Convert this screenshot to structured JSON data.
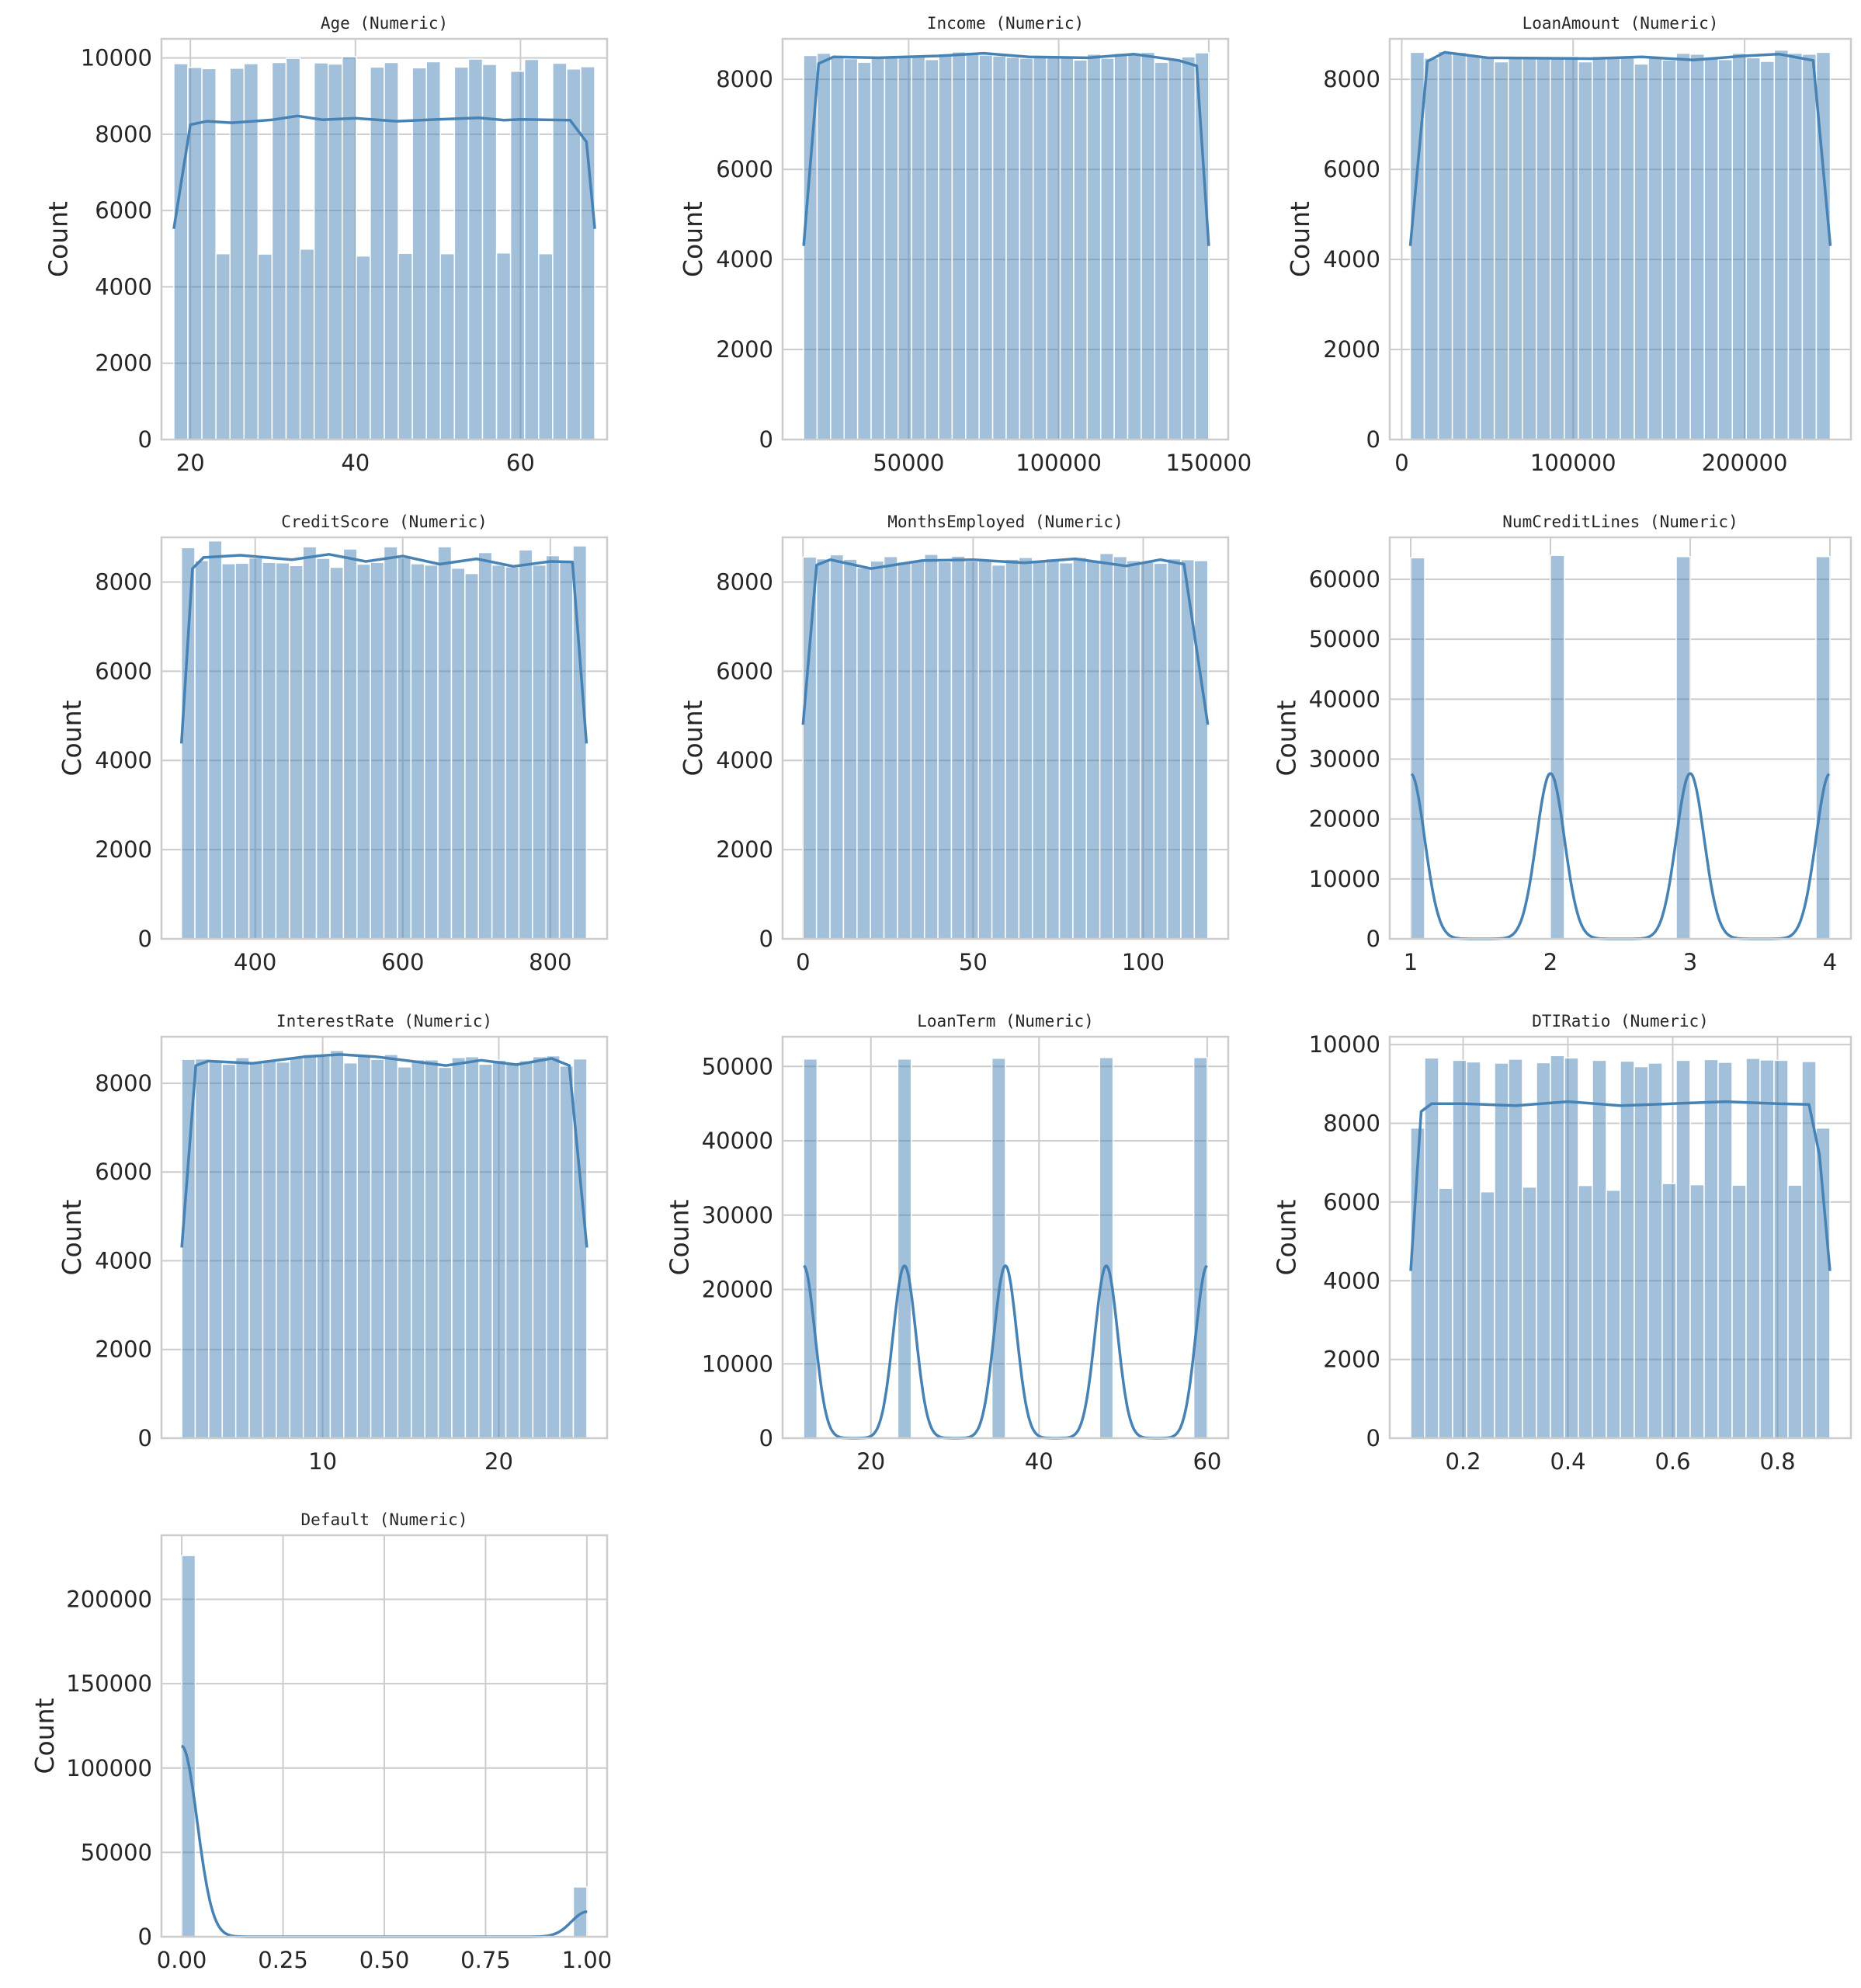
{
  "page": {
    "bar_color": "#4682b4",
    "grid_color": "#cccccc",
    "background": "#ffffff"
  },
  "chart_data": [
    {
      "type": "bar",
      "title": "Age (Numeric)",
      "ylabel": "Count",
      "xlabel": "",
      "xlim": [
        16.5,
        70.5
      ],
      "ylim": [
        0,
        10500
      ],
      "xticks": [
        20,
        40,
        60
      ],
      "xtick_labels": [
        "20",
        "40",
        "60"
      ],
      "yticks": [
        0,
        2000,
        4000,
        6000,
        8000,
        10000
      ],
      "ytick_labels": [
        "0",
        "2000",
        "4000",
        "6000",
        "8000",
        "10000"
      ],
      "bins": {
        "start": 18,
        "end": 69,
        "counts": [
          9850,
          9750,
          9720,
          4870,
          9730,
          9850,
          4860,
          9880,
          9990,
          4990,
          9870,
          9840,
          10030,
          4810,
          9760,
          9880,
          4880,
          9740,
          9900,
          4870,
          9760,
          9970,
          9830,
          4890,
          9650,
          9960,
          4870,
          9860,
          9710,
          9770
        ]
      },
      "kde": {
        "x": [
          18,
          20,
          22,
          25,
          30,
          33,
          36,
          40,
          45,
          50,
          55,
          58,
          60,
          63,
          66,
          68,
          69
        ],
        "y": [
          5520,
          8250,
          8340,
          8300,
          8380,
          8480,
          8380,
          8420,
          8340,
          8390,
          8430,
          8370,
          8390,
          8380,
          8370,
          7800,
          5520
        ]
      }
    },
    {
      "type": "bar",
      "title": "Income (Numeric)",
      "ylabel": "Count",
      "xlabel": "",
      "xlim": [
        8000,
        156500
      ],
      "ylim": [
        0,
        8900
      ],
      "xticks": [
        50000,
        100000,
        150000
      ],
      "xtick_labels": [
        "50000",
        "100000",
        "150000"
      ],
      "yticks": [
        0,
        2000,
        4000,
        6000,
        8000
      ],
      "ytick_labels": [
        "0",
        "2000",
        "4000",
        "6000",
        "8000"
      ],
      "bins": {
        "start": 15000,
        "end": 150000,
        "counts": [
          8530,
          8580,
          8480,
          8460,
          8380,
          8470,
          8490,
          8520,
          8530,
          8440,
          8570,
          8610,
          8560,
          8540,
          8520,
          8490,
          8470,
          8500,
          8490,
          8510,
          8430,
          8560,
          8470,
          8580,
          8590,
          8600,
          8380,
          8450,
          8500,
          8590
        ]
      },
      "kde": {
        "x": [
          15000,
          20000,
          25000,
          40000,
          60000,
          75000,
          90000,
          110000,
          125000,
          140000,
          146000,
          150000
        ],
        "y": [
          4300,
          8350,
          8500,
          8480,
          8520,
          8580,
          8500,
          8480,
          8560,
          8420,
          8300,
          4300
        ]
      }
    },
    {
      "type": "bar",
      "title": "LoanAmount (Numeric)",
      "ylabel": "Count",
      "xlabel": "",
      "xlim": [
        -7000,
        262000
      ],
      "ylim": [
        0,
        8900
      ],
      "xticks": [
        0,
        100000,
        200000
      ],
      "xtick_labels": [
        "0",
        "100000",
        "200000"
      ],
      "yticks": [
        0,
        2000,
        4000,
        6000,
        8000
      ],
      "ytick_labels": [
        "0",
        "2000",
        "4000",
        "6000",
        "8000"
      ],
      "bins": {
        "start": 5000,
        "end": 250000,
        "counts": [
          8600,
          8470,
          8620,
          8600,
          8530,
          8480,
          8390,
          8500,
          8480,
          8470,
          8470,
          8510,
          8390,
          8510,
          8480,
          8480,
          8340,
          8480,
          8430,
          8580,
          8560,
          8500,
          8440,
          8580,
          8480,
          8400,
          8650,
          8580,
          8560,
          8600
        ]
      },
      "kde": {
        "x": [
          5000,
          15000,
          25000,
          50000,
          80000,
          110000,
          140000,
          170000,
          200000,
          220000,
          240000,
          250000
        ],
        "y": [
          4300,
          8400,
          8600,
          8480,
          8470,
          8460,
          8500,
          8430,
          8520,
          8560,
          8420,
          4300
        ]
      }
    },
    {
      "type": "bar",
      "title": "CreditScore (Numeric)",
      "ylabel": "Count",
      "xlabel": "",
      "xlim": [
        273,
        877
      ],
      "ylim": [
        0,
        9000
      ],
      "xticks": [
        400,
        600,
        800
      ],
      "xtick_labels": [
        "400",
        "600",
        "800"
      ],
      "yticks": [
        0,
        2000,
        4000,
        6000,
        8000
      ],
      "ytick_labels": [
        "0",
        "2000",
        "4000",
        "6000",
        "8000"
      ],
      "bins": {
        "start": 300,
        "end": 849,
        "counts": [
          8770,
          8480,
          8920,
          8410,
          8420,
          8540,
          8440,
          8430,
          8370,
          8790,
          8530,
          8330,
          8740,
          8400,
          8440,
          8790,
          8550,
          8410,
          8380,
          8790,
          8310,
          8190,
          8660,
          8380,
          8340,
          8720,
          8380,
          8590,
          8470,
          8810
        ]
      },
      "kde": {
        "x": [
          300,
          315,
          330,
          380,
          450,
          500,
          550,
          600,
          650,
          700,
          750,
          800,
          830,
          849
        ],
        "y": [
          4380,
          8300,
          8550,
          8600,
          8500,
          8620,
          8460,
          8580,
          8400,
          8520,
          8350,
          8460,
          8450,
          4380
        ]
      }
    },
    {
      "type": "bar",
      "title": "MonthsEmployed (Numeric)",
      "ylabel": "Count",
      "xlabel": "",
      "xlim": [
        -6,
        125
      ],
      "ylim": [
        0,
        9000
      ],
      "xticks": [
        0,
        50,
        100
      ],
      "xtick_labels": [
        "0",
        "50",
        "100"
      ],
      "yticks": [
        0,
        2000,
        4000,
        6000,
        8000
      ],
      "ytick_labels": [
        "0",
        "2000",
        "4000",
        "6000",
        "8000"
      ],
      "bins": {
        "start": 0,
        "end": 119,
        "counts": [
          8560,
          8520,
          8610,
          8510,
          8320,
          8470,
          8570,
          8450,
          8470,
          8620,
          8460,
          8580,
          8470,
          8490,
          8380,
          8510,
          8550,
          8490,
          8520,
          8430,
          8550,
          8470,
          8640,
          8570,
          8480,
          8450,
          8420,
          8520,
          8500,
          8480
        ]
      },
      "kde": {
        "x": [
          0,
          4,
          8,
          20,
          35,
          50,
          65,
          80,
          95,
          105,
          112,
          119
        ],
        "y": [
          4800,
          8380,
          8500,
          8300,
          8480,
          8500,
          8430,
          8520,
          8360,
          8500,
          8400,
          4800
        ]
      }
    },
    {
      "type": "bar",
      "title": "NumCreditLines (Numeric)",
      "ylabel": "Count",
      "xlabel": "",
      "xlim": [
        0.85,
        4.15
      ],
      "ylim": [
        0,
        67000
      ],
      "xticks": [
        1,
        2,
        3,
        4
      ],
      "xtick_labels": [
        "1",
        "2",
        "3",
        "4"
      ],
      "yticks": [
        0,
        10000,
        20000,
        30000,
        40000,
        50000,
        60000
      ],
      "ytick_labels": [
        "0",
        "10000",
        "20000",
        "30000",
        "40000",
        "50000",
        "60000"
      ],
      "bins": {
        "start": 1,
        "end": 4,
        "counts": [
          63600,
          0,
          0,
          0,
          0,
          0,
          0,
          0,
          0,
          0,
          64000,
          0,
          0,
          0,
          0,
          0,
          0,
          0,
          0,
          63800,
          0,
          0,
          0,
          0,
          0,
          0,
          0,
          0,
          0,
          63800
        ]
      },
      "kde": {
        "peaks": [
          1,
          2,
          3,
          4
        ],
        "peak_height": 27600,
        "bandwidth": 0.1
      }
    },
    {
      "type": "bar",
      "title": "InterestRate (Numeric)",
      "ylabel": "Count",
      "xlabel": "",
      "xlim": [
        0.85,
        26.15
      ],
      "ylim": [
        0,
        9050
      ],
      "xticks": [
        10,
        20
      ],
      "xtick_labels": [
        "10",
        "20"
      ],
      "yticks": [
        0,
        2000,
        4000,
        6000,
        8000
      ],
      "ytick_labels": [
        "0",
        "2000",
        "4000",
        "6000",
        "8000"
      ],
      "bins": {
        "start": 2,
        "end": 25,
        "counts": [
          8540,
          8550,
          8480,
          8430,
          8580,
          8470,
          8520,
          8480,
          8600,
          8650,
          8610,
          8740,
          8460,
          8620,
          8540,
          8650,
          8370,
          8530,
          8530,
          8360,
          8580,
          8600,
          8430,
          8520,
          8460,
          8510,
          8600,
          8620,
          8390,
          8550
        ]
      },
      "kde": {
        "x": [
          2,
          2.8,
          3.5,
          6,
          9,
          11,
          13,
          15,
          17,
          19,
          21,
          23,
          24,
          25
        ],
        "y": [
          4300,
          8400,
          8500,
          8450,
          8600,
          8650,
          8600,
          8500,
          8400,
          8520,
          8420,
          8560,
          8400,
          4300
        ]
      }
    },
    {
      "type": "bar",
      "title": "LoanTerm (Numeric)",
      "ylabel": "Count",
      "xlabel": "",
      "xlim": [
        9.5,
        62.5
      ],
      "ylim": [
        0,
        54000
      ],
      "xticks": [
        20,
        40,
        60
      ],
      "xtick_labels": [
        "20",
        "40",
        "60"
      ],
      "yticks": [
        0,
        10000,
        20000,
        30000,
        40000,
        50000
      ],
      "ytick_labels": [
        "0",
        "10000",
        "20000",
        "30000",
        "40000",
        "50000"
      ],
      "bins": {
        "start": 12,
        "end": 60,
        "counts": [
          51000,
          0,
          0,
          0,
          0,
          0,
          0,
          51000,
          0,
          0,
          0,
          0,
          0,
          0,
          51100,
          0,
          0,
          0,
          0,
          0,
          0,
          0,
          51200,
          0,
          0,
          0,
          0,
          0,
          0,
          51200
        ]
      },
      "kde": {
        "peaks": [
          12,
          24,
          36,
          48,
          60
        ],
        "peak_height": 23200,
        "bandwidth": 1.35
      }
    },
    {
      "type": "bar",
      "title": "DTIRatio (Numeric)",
      "ylabel": "Count",
      "xlabel": "",
      "xlim": [
        0.06,
        0.94
      ],
      "ylim": [
        0,
        10200
      ],
      "xticks": [
        0.2,
        0.4,
        0.6,
        0.8
      ],
      "xtick_labels": [
        "0.2",
        "0.4",
        "0.6",
        "0.8"
      ],
      "yticks": [
        0,
        2000,
        4000,
        6000,
        8000,
        10000
      ],
      "ytick_labels": [
        "0",
        "2000",
        "4000",
        "6000",
        "8000",
        "10000"
      ],
      "bins": {
        "start": 0.1,
        "end": 0.9,
        "counts": [
          7880,
          9660,
          6350,
          9600,
          9560,
          6260,
          9530,
          9630,
          6380,
          9540,
          9720,
          9660,
          6420,
          9600,
          6300,
          9580,
          9440,
          9530,
          6470,
          9600,
          6440,
          9620,
          9550,
          6430,
          9650,
          9610,
          9600,
          6430,
          9570,
          7880
        ]
      },
      "kde": {
        "x": [
          0.1,
          0.12,
          0.14,
          0.2,
          0.3,
          0.4,
          0.5,
          0.6,
          0.7,
          0.8,
          0.86,
          0.88,
          0.9
        ],
        "y": [
          4250,
          8300,
          8500,
          8500,
          8450,
          8550,
          8450,
          8500,
          8550,
          8500,
          8480,
          7200,
          4250
        ]
      }
    },
    {
      "type": "bar",
      "title": "Default (Numeric)",
      "ylabel": "Count",
      "xlabel": "",
      "xlim": [
        -0.05,
        1.05
      ],
      "ylim": [
        0,
        238000
      ],
      "xticks": [
        0,
        0.25,
        0.5,
        0.75,
        1.0
      ],
      "xtick_labels": [
        "0.00",
        "0.25",
        "0.50",
        "0.75",
        "1.00"
      ],
      "yticks": [
        0,
        50000,
        100000,
        150000,
        200000
      ],
      "ytick_labels": [
        "0",
        "50000",
        "100000",
        "150000",
        "200000"
      ],
      "bins": {
        "start": 0,
        "end": 1,
        "counts": [
          226000,
          0,
          0,
          0,
          0,
          0,
          0,
          0,
          0,
          0,
          0,
          0,
          0,
          0,
          0,
          0,
          0,
          0,
          0,
          0,
          0,
          0,
          0,
          0,
          0,
          0,
          0,
          0,
          0,
          29500
        ]
      },
      "kde": {
        "peaks": [
          0,
          1
        ],
        "peak_heights": [
          113000,
          14800
        ],
        "bandwidth": 0.038
      }
    }
  ]
}
